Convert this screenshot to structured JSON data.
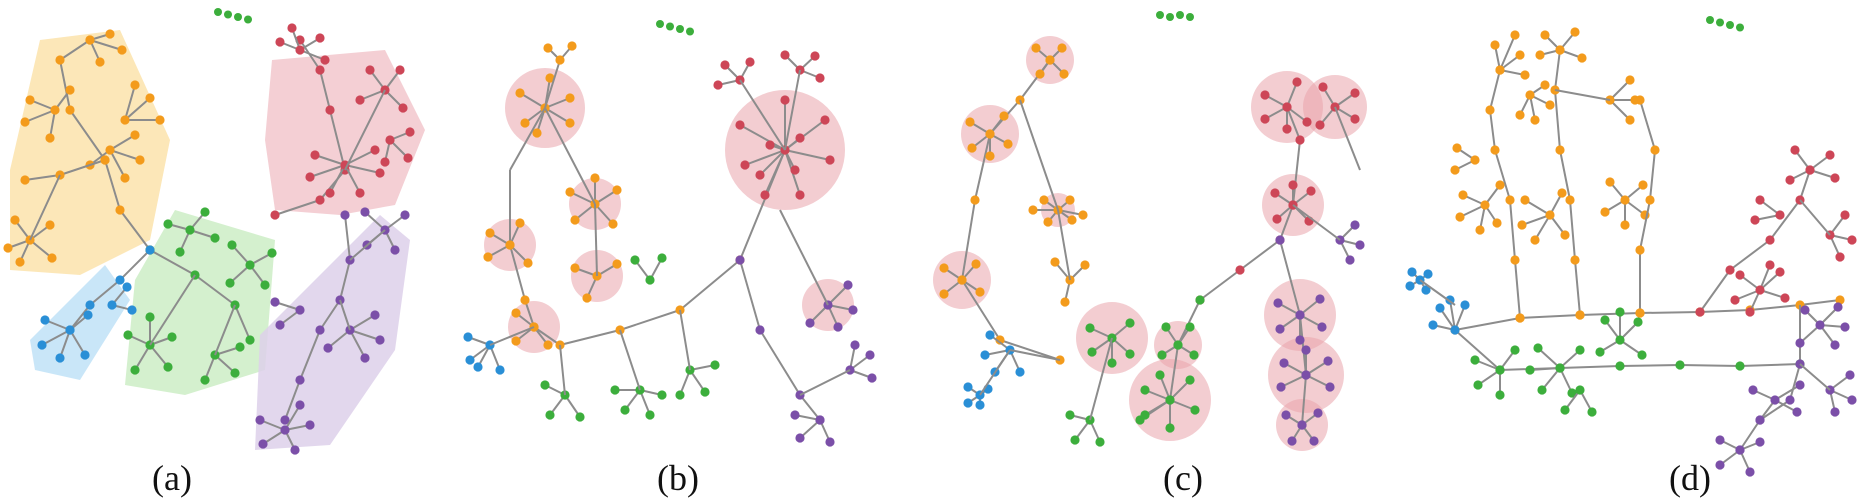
{
  "panels": [
    {
      "id": "a",
      "label": "(a)",
      "emphasis": "hulls"
    },
    {
      "id": "b",
      "label": "(b)",
      "emphasis": "circles"
    },
    {
      "id": "c",
      "label": "(c)",
      "emphasis": "circles"
    },
    {
      "id": "d",
      "label": "(d)",
      "emphasis": "none"
    }
  ],
  "colors": {
    "orange": "#f39b1c",
    "red": "#cd4657",
    "green": "#3cae3c",
    "blue": "#2a8fd6",
    "purple": "#7b4fa8",
    "edge": "#8c8c8c",
    "hull_orange": "#fbe3ac",
    "hull_red": "#f2c7cc",
    "hull_green": "#cdedc6",
    "hull_blue": "#bfe2f7",
    "hull_purple": "#ddd0ea",
    "circle_fill": "#e9a4ab"
  }
}
